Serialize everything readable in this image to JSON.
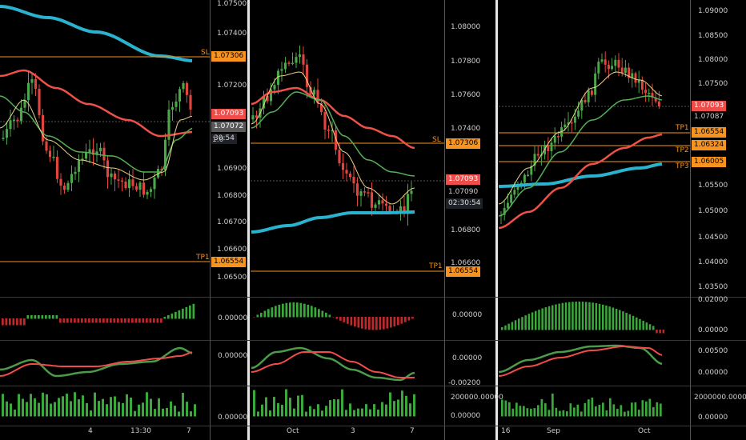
{
  "colors": {
    "bull": "#4aa84a",
    "bear": "#e0453f",
    "ma_blue": "#2ab3cf",
    "ma_red": "#ee5147",
    "ma_green": "#55b055",
    "ma_yellow": "#e9d28a",
    "level": "#f7931e",
    "osc_green": "#3aa83a",
    "osc_red": "#c0292b",
    "sig_red": "#ef4d4a",
    "sig_green": "#4c9a4c"
  },
  "panels": [
    {
      "id": "left",
      "price_labels": [
        "1.07500",
        "1.07400",
        "1.07200",
        "1.06900",
        "1.06800",
        "1.06700",
        "1.06600",
        "1.06500"
      ],
      "time_labels": [
        "4",
        "13:30",
        "7"
      ],
      "levels": [
        {
          "name": "SL",
          "value": "1.07306"
        },
        {
          "name": "TP1",
          "value": "1.06554"
        }
      ],
      "price_tags": [
        {
          "text": "1.07093",
          "style": "red"
        },
        {
          "text": "1.07072",
          "style": "gray"
        },
        {
          "text": "30:54",
          "style": "dark"
        },
        {
          "text": "1.0",
          "style": "plain"
        }
      ],
      "osc_labels": [
        "0.00000",
        "0.00000",
        "0.00000"
      ]
    },
    {
      "id": "middle",
      "price_labels": [
        "1.08000",
        "1.07800",
        "1.07600",
        "1.07400",
        "1.06800",
        "1.06600"
      ],
      "time_labels": [
        "Oct",
        "3",
        "7"
      ],
      "levels": [
        {
          "name": "SL",
          "value": "1.07306"
        },
        {
          "name": "TP1",
          "value": "1.06554"
        }
      ],
      "price_tags": [
        {
          "text": "1.07093",
          "style": "red"
        },
        {
          "text": "1.07090",
          "style": "plain"
        },
        {
          "text": "02:30:54",
          "style": "dark"
        }
      ],
      "osc_labels": [
        "0.00000",
        "0.00000",
        "-0.00200",
        "200000.00000",
        "0.00000"
      ]
    },
    {
      "id": "right",
      "price_labels": [
        "1.09000",
        "1.08500",
        "1.08000",
        "1.07500",
        "1.05500",
        "1.05000",
        "1.04500",
        "1.04000",
        "1.03500"
      ],
      "time_labels": [
        "16",
        "Sep",
        "Oct"
      ],
      "levels": [
        {
          "name": "TP1",
          "value": "1.06554"
        },
        {
          "name": "TP2",
          "value": "1.06324"
        },
        {
          "name": "TP3",
          "value": "1.06005"
        }
      ],
      "price_tags": [
        {
          "text": "1.07093",
          "style": "red"
        },
        {
          "text": "1.07087",
          "style": "plain"
        }
      ],
      "osc_labels": [
        "0.02000",
        "0.00000",
        "0.00500",
        "0.00000",
        "2000000.00000",
        "0.00000"
      ]
    }
  ]
}
